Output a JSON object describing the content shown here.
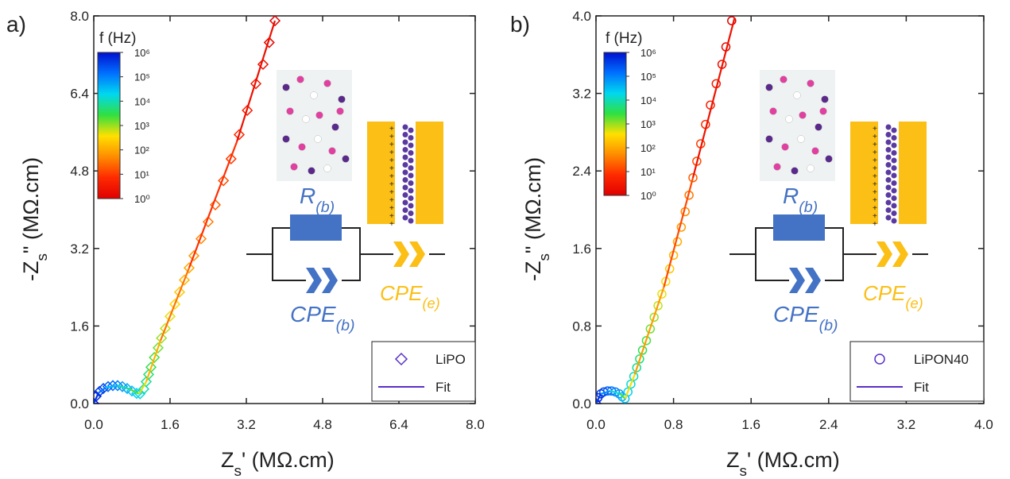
{
  "chart_data": [
    {
      "type": "scatter",
      "panel_label": "a)",
      "xlabel": {
        "main": "Z",
        "sub": "s",
        "rest": "' (MΩ.cm)"
      },
      "ylabel": {
        "main": "-Z",
        "sub": "s",
        "rest": "\" (MΩ.cm)"
      },
      "xlim": [
        0,
        8
      ],
      "ylim": [
        0,
        8
      ],
      "xticks": [
        {
          "value": 0,
          "label": "0.0"
        },
        1.6,
        3.2,
        4.8,
        6.4,
        {
          "value": 8,
          "label": "8.0"
        }
      ],
      "yticks": [
        {
          "value": 0,
          "label": "0.0"
        },
        1.6,
        3.2,
        4.8,
        6.4,
        {
          "value": 8,
          "label": "8.0"
        }
      ],
      "legend_color": "#5a2fc9",
      "series": [
        {
          "name": "LiPO",
          "marker": "diamond",
          "x": [
            0.0,
            0.05,
            0.12,
            0.2,
            0.3,
            0.4,
            0.5,
            0.6,
            0.7,
            0.8,
            0.9,
            0.97,
            1.05,
            1.1,
            1.15,
            1.2,
            1.27,
            1.35,
            1.42,
            1.5,
            1.6,
            1.7,
            1.8,
            1.9,
            2.0,
            2.1,
            2.25,
            2.4,
            2.55,
            2.72,
            2.88,
            3.05,
            3.22,
            3.4,
            3.55,
            3.68,
            3.8
          ],
          "values": [
            0.0,
            0.15,
            0.25,
            0.31,
            0.35,
            0.37,
            0.37,
            0.35,
            0.31,
            0.26,
            0.21,
            0.2,
            0.3,
            0.45,
            0.6,
            0.75,
            0.95,
            1.15,
            1.35,
            1.55,
            1.8,
            2.05,
            2.3,
            2.55,
            2.8,
            3.05,
            3.4,
            3.75,
            4.1,
            4.6,
            5.05,
            5.55,
            6.05,
            6.6,
            7.0,
            7.45,
            7.9
          ]
        },
        {
          "name": "Fit",
          "marker": "line",
          "x": [
            0.0,
            0.1,
            0.25,
            0.5,
            0.75,
            0.95,
            1.1,
            1.4,
            2.0,
            3.0,
            3.8
          ],
          "values": [
            0.0,
            0.22,
            0.33,
            0.37,
            0.3,
            0.2,
            0.45,
            1.3,
            2.8,
            5.4,
            7.9
          ]
        }
      ],
      "colorbar": {
        "title": "f (Hz)",
        "log": true,
        "lim": [
          1,
          1000000
        ],
        "colors": [
          "#e00000",
          "#ff2a00",
          "#ff8c00",
          "#ffe000",
          "#30e040",
          "#00d8f0",
          "#0070ff",
          "#0010d0"
        ],
        "ticks": [
          {
            "value": 1,
            "label": "10⁰"
          },
          {
            "value": 10,
            "label": "10¹"
          },
          {
            "value": 100,
            "label": "10²"
          },
          {
            "value": 1000,
            "label": "10³"
          },
          {
            "value": 10000,
            "label": "10⁴"
          },
          {
            "value": 100000,
            "label": "10⁵"
          },
          {
            "value": 1000000,
            "label": "10⁶"
          }
        ]
      },
      "circuit": {
        "r": {
          "main": "R",
          "sub": "(b)"
        },
        "cpe_b": {
          "main": "CPE",
          "sub": "(b)"
        },
        "cpe_e": {
          "main": "CPE",
          "sub": "(e)"
        }
      }
    },
    {
      "type": "scatter",
      "panel_label": "b)",
      "xlabel": {
        "main": "Z",
        "sub": "s",
        "rest": "' (MΩ.cm)"
      },
      "ylabel": {
        "main": "-Z",
        "sub": "s",
        "rest": "\" (MΩ.cm)"
      },
      "xlim": [
        0,
        4
      ],
      "ylim": [
        0,
        4
      ],
      "xticks": [
        {
          "value": 0,
          "label": "0.0"
        },
        0.8,
        1.6,
        2.4,
        3.2,
        {
          "value": 4,
          "label": "4.0"
        }
      ],
      "yticks": [
        {
          "value": 0,
          "label": "0.0"
        },
        0.8,
        1.6,
        2.4,
        3.2,
        {
          "value": 4,
          "label": "4.0"
        }
      ],
      "legend_color": "#5a2fc9",
      "series": [
        {
          "name": "LiPON40",
          "marker": "circle",
          "x": [
            0.0,
            0.02,
            0.05,
            0.08,
            0.12,
            0.16,
            0.2,
            0.24,
            0.27,
            0.3,
            0.33,
            0.36,
            0.39,
            0.42,
            0.45,
            0.48,
            0.52,
            0.56,
            0.6,
            0.64,
            0.68,
            0.72,
            0.76,
            0.8,
            0.84,
            0.88,
            0.92,
            0.96,
            1.0,
            1.04,
            1.08,
            1.13,
            1.18,
            1.24,
            1.3,
            1.34,
            1.4
          ],
          "values": [
            0.0,
            0.06,
            0.1,
            0.12,
            0.13,
            0.13,
            0.12,
            0.1,
            0.07,
            0.05,
            0.12,
            0.2,
            0.28,
            0.37,
            0.46,
            0.55,
            0.65,
            0.77,
            0.89,
            1.01,
            1.13,
            1.26,
            1.39,
            1.53,
            1.67,
            1.82,
            1.98,
            2.15,
            2.33,
            2.5,
            2.68,
            2.88,
            3.08,
            3.3,
            3.5,
            3.68,
            3.95
          ]
        },
        {
          "name": "Fit",
          "marker": "line",
          "x": [
            0.0,
            0.05,
            0.15,
            0.25,
            0.3,
            0.4,
            0.7,
            1.0,
            1.43
          ],
          "values": [
            0.0,
            0.1,
            0.13,
            0.1,
            0.05,
            0.3,
            1.2,
            2.33,
            3.98
          ]
        }
      ],
      "colorbar": {
        "title": "f (Hz)",
        "log": true,
        "lim": [
          1,
          1000000
        ],
        "colors": [
          "#e00000",
          "#ff2a00",
          "#ff8c00",
          "#ffe000",
          "#30e040",
          "#00d8f0",
          "#0070ff",
          "#0010d0"
        ],
        "ticks": [
          {
            "value": 1,
            "label": "10⁰"
          },
          {
            "value": 10,
            "label": "10¹"
          },
          {
            "value": 100,
            "label": "10²"
          },
          {
            "value": 1000,
            "label": "10³"
          },
          {
            "value": 10000,
            "label": "10⁴"
          },
          {
            "value": 100000,
            "label": "10⁵"
          },
          {
            "value": 1000000,
            "label": "10⁶"
          }
        ]
      },
      "circuit": {
        "r": {
          "main": "R",
          "sub": "(b)"
        },
        "cpe_b": {
          "main": "CPE",
          "sub": "(b)"
        },
        "cpe_e": {
          "main": "CPE",
          "sub": "(e)"
        }
      }
    }
  ]
}
